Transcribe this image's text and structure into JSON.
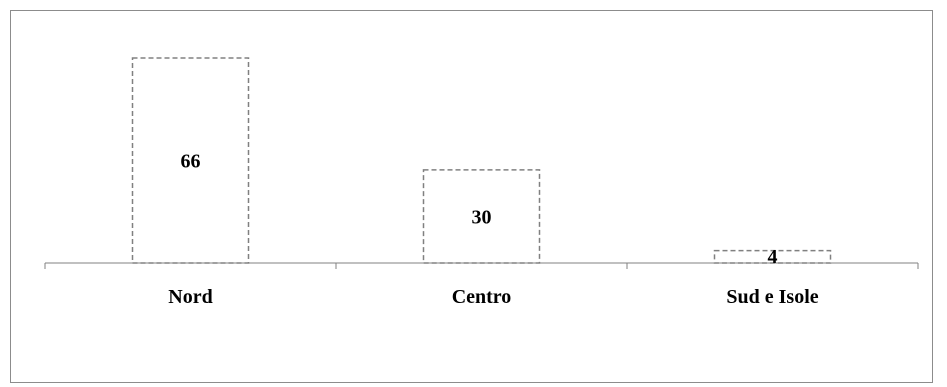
{
  "chart_data": {
    "type": "bar",
    "categories": [
      "Nord",
      "Centro",
      "Sud e Isole"
    ],
    "values": [
      66,
      30,
      4
    ],
    "title": "",
    "xlabel": "",
    "ylabel": "",
    "ylim": [
      0,
      66
    ],
    "grid": false,
    "legend": "none",
    "bar_fill": "#ffffff",
    "bar_stroke": "#808080",
    "bar_stroke_style": "dashed"
  }
}
